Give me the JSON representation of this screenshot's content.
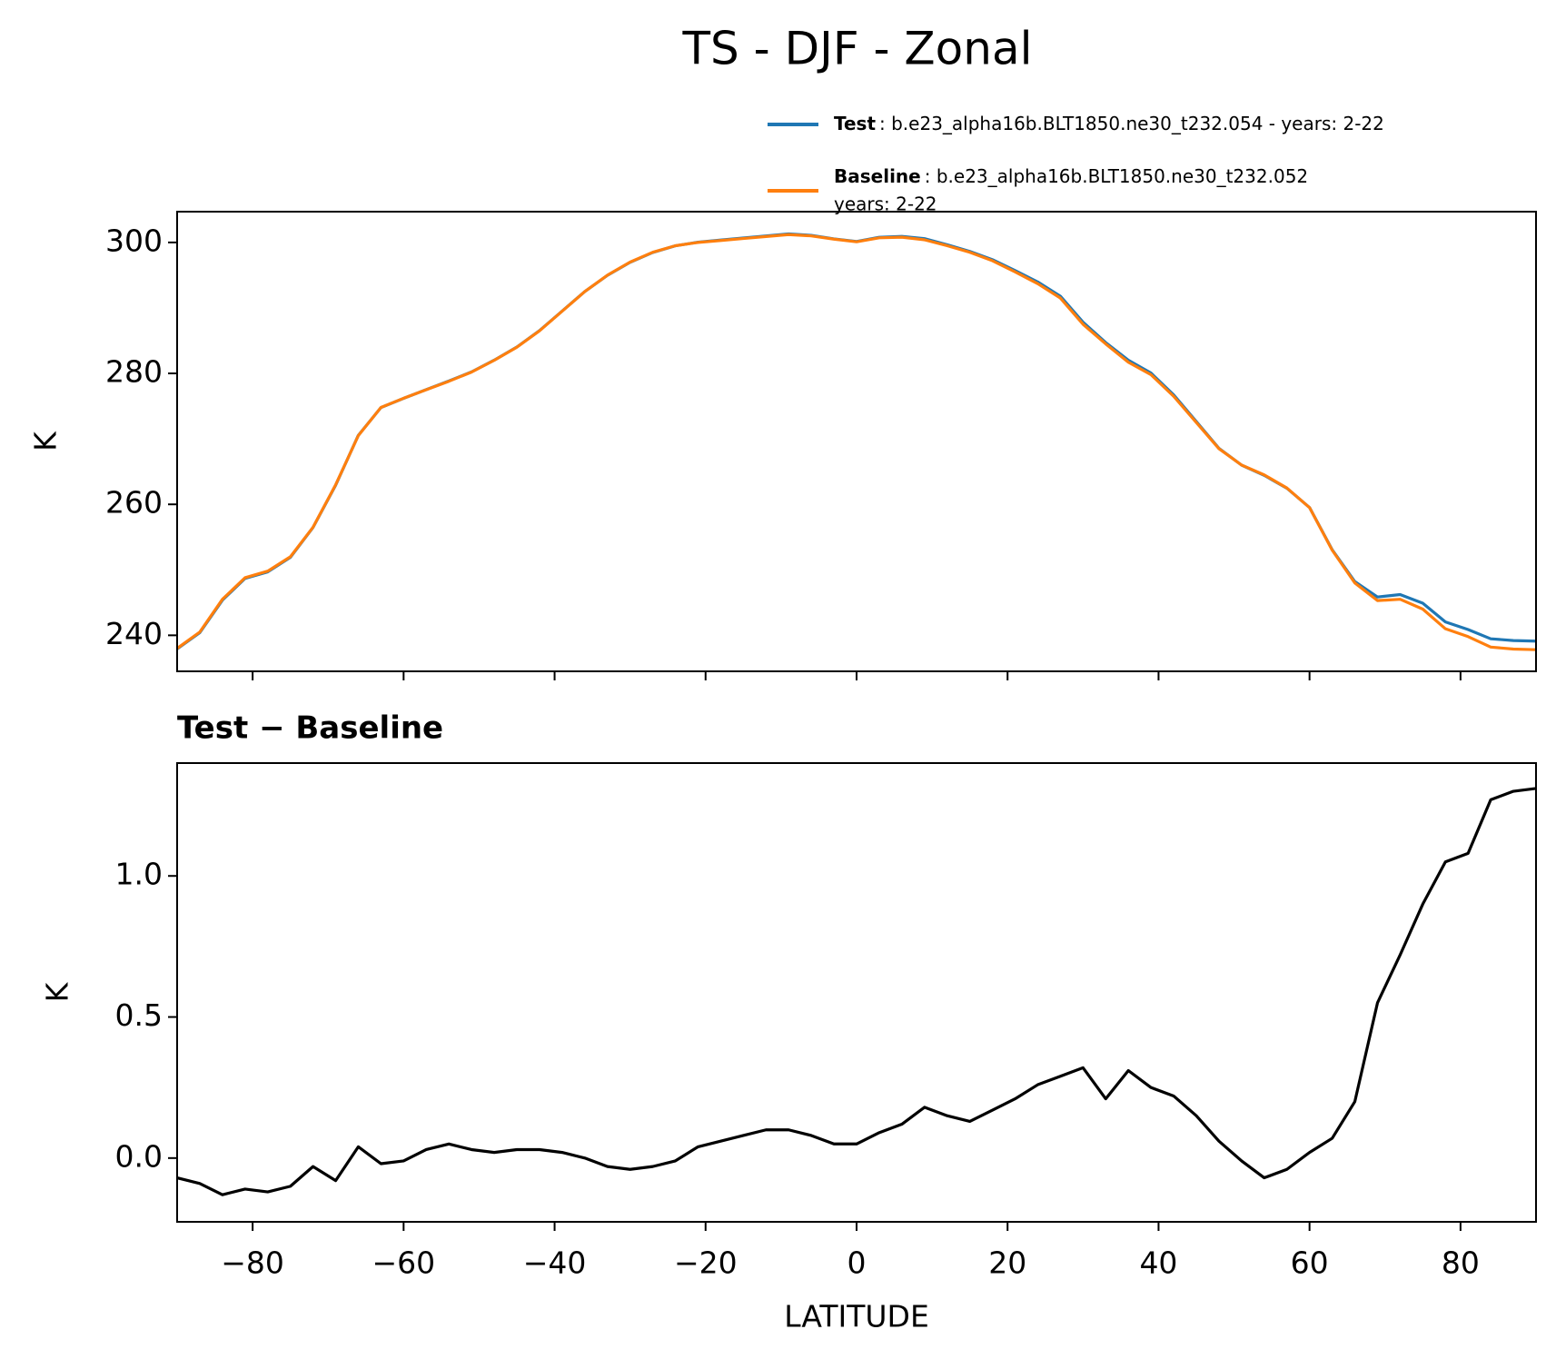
{
  "title": "TS - DJF - Zonal",
  "chart_data": [
    {
      "type": "line",
      "x": [
        -90,
        -87,
        -84,
        -81,
        -78,
        -75,
        -72,
        -69,
        -66,
        -63,
        -60,
        -57,
        -54,
        -51,
        -48,
        -45,
        -42,
        -39,
        -36,
        -33,
        -30,
        -27,
        -24,
        -21,
        -18,
        -15,
        -12,
        -9,
        -6,
        -3,
        0,
        3,
        6,
        9,
        12,
        15,
        18,
        21,
        24,
        27,
        30,
        33,
        36,
        39,
        42,
        45,
        48,
        51,
        54,
        57,
        60,
        63,
        66,
        69,
        72,
        75,
        78,
        81,
        84,
        87,
        90
      ],
      "series": [
        {
          "name": "Test",
          "description_lines": [
            ": b.e23_alpha16b.BLT1850.ne30_t232.054 - years: 2-22"
          ],
          "color": "#1f77b4",
          "values": [
            237.93,
            240.41,
            245.37,
            248.69,
            249.68,
            251.9,
            256.47,
            262.92,
            270.54,
            274.78,
            276.19,
            277.53,
            278.85,
            280.23,
            282.02,
            284.03,
            286.53,
            289.52,
            292.5,
            294.97,
            296.96,
            298.47,
            299.49,
            300.04,
            300.36,
            300.68,
            301.0,
            301.3,
            301.08,
            300.55,
            300.15,
            300.79,
            300.92,
            300.58,
            299.65,
            298.63,
            297.37,
            295.71,
            293.96,
            291.79,
            287.82,
            284.71,
            282.01,
            280.05,
            276.72,
            272.65,
            268.56,
            265.99,
            264.43,
            262.46,
            259.52,
            253.07,
            248.2,
            245.85,
            246.22,
            244.9,
            242.05,
            240.88,
            239.47,
            239.2,
            239.11
          ]
        },
        {
          "name": "Baseline",
          "description_lines": [
            ": b.e23_alpha16b.BLT1850.ne30_t232.052",
            "years: 2-22"
          ],
          "color": "#ff7f0e",
          "values": [
            238,
            240.5,
            245.5,
            248.8,
            249.8,
            252,
            256.5,
            263,
            270.5,
            274.8,
            276.2,
            277.5,
            278.8,
            280.2,
            282,
            284,
            286.5,
            289.5,
            292.5,
            295,
            297,
            298.5,
            299.5,
            300,
            300.3,
            300.6,
            300.9,
            301.2,
            301,
            300.5,
            300.1,
            300.7,
            300.8,
            300.4,
            299.5,
            298.5,
            297.2,
            295.5,
            293.7,
            291.5,
            287.5,
            284.5,
            281.7,
            279.8,
            276.5,
            272.5,
            268.5,
            266,
            264.5,
            262.5,
            259.5,
            253,
            248,
            245.3,
            245.5,
            244,
            241,
            239.8,
            238.2,
            237.9,
            237.8
          ]
        }
      ],
      "ylabel": "K",
      "xlim": [
        -90,
        90
      ],
      "ylim": [
        234.5,
        304.7
      ],
      "xticks": [
        -80,
        -60,
        -40,
        -20,
        0,
        20,
        40,
        60,
        80
      ],
      "xtick_labels": false,
      "yticks": [
        240,
        260,
        280,
        300
      ]
    },
    {
      "type": "line",
      "title": "Test − Baseline",
      "x": [
        -90,
        -87,
        -84,
        -81,
        -78,
        -75,
        -72,
        -69,
        -66,
        -63,
        -60,
        -57,
        -54,
        -51,
        -48,
        -45,
        -42,
        -39,
        -36,
        -33,
        -30,
        -27,
        -24,
        -21,
        -18,
        -15,
        -12,
        -9,
        -6,
        -3,
        0,
        3,
        6,
        9,
        12,
        15,
        18,
        21,
        24,
        27,
        30,
        33,
        36,
        39,
        42,
        45,
        48,
        51,
        54,
        57,
        60,
        63,
        66,
        69,
        72,
        75,
        78,
        81,
        84,
        87,
        90
      ],
      "series": [
        {
          "color": "#000000",
          "values": [
            -0.07,
            -0.09,
            -0.13,
            -0.11,
            -0.12,
            -0.1,
            -0.03,
            -0.08,
            0.04,
            -0.02,
            -0.01,
            0.03,
            0.05,
            0.03,
            0.02,
            0.03,
            0.03,
            0.02,
            0.0,
            -0.03,
            -0.04,
            -0.03,
            -0.01,
            0.04,
            0.06,
            0.08,
            0.1,
            0.1,
            0.08,
            0.05,
            0.05,
            0.09,
            0.12,
            0.18,
            0.15,
            0.13,
            0.17,
            0.21,
            0.26,
            0.29,
            0.32,
            0.21,
            0.31,
            0.25,
            0.22,
            0.15,
            0.06,
            -0.01,
            -0.07,
            -0.04,
            0.02,
            0.07,
            0.2,
            0.55,
            0.72,
            0.9,
            1.05,
            1.08,
            1.27,
            1.3,
            1.31
          ]
        }
      ],
      "xlabel": "LATITUDE",
      "ylabel": "K",
      "xlim": [
        -90,
        90
      ],
      "ylim": [
        -0.226,
        1.4
      ],
      "xticks": [
        {
          "value": -80,
          "label": "−80"
        },
        {
          "value": -60,
          "label": "−60"
        },
        {
          "value": -40,
          "label": "−40"
        },
        {
          "value": -20,
          "label": "−20"
        },
        0,
        20,
        40,
        60,
        80
      ],
      "yticks": [
        {
          "value": 0,
          "label": "0.0"
        },
        {
          "value": 0.5,
          "label": "0.5"
        },
        {
          "value": 1,
          "label": "1.0"
        }
      ]
    }
  ]
}
